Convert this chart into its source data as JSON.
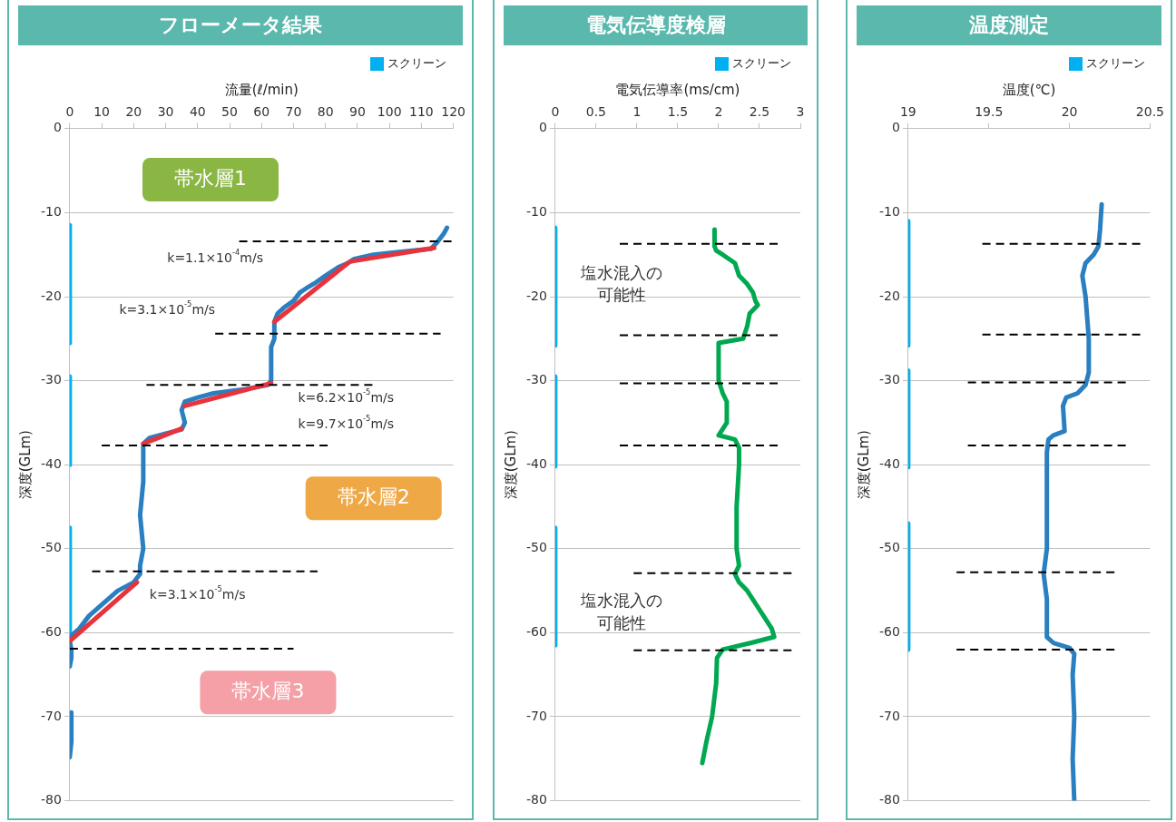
{
  "chart_data": [
    {
      "type": "line",
      "title": "フローメータ結果",
      "xlabel": "流量(ℓ/min)",
      "ylabel": "深度(GLm)",
      "xlim": [
        0,
        120
      ],
      "xticks": [
        0,
        10,
        20,
        30,
        40,
        50,
        60,
        70,
        80,
        90,
        100,
        110,
        120
      ],
      "ylim": [
        -80,
        0
      ],
      "yticks": [
        -80,
        -70,
        -60,
        -50,
        -40,
        -30,
        -20,
        -10,
        0
      ],
      "grid": "y",
      "legend": "top right",
      "marker": "none",
      "series": [
        {
          "name": "スクリーン",
          "color": "#00b0f0",
          "x": [
            0,
            0,
            null,
            0,
            0,
            null,
            0,
            0
          ],
          "values": [
            -11.5,
            -25.5,
            null,
            -29.5,
            -40,
            null,
            -47.5,
            -61.5
          ]
        },
        {
          "color": "#2a7fc0",
          "x": [
            118,
            117,
            115,
            113,
            105,
            95,
            89,
            87,
            84,
            80,
            77,
            74,
            72,
            70,
            67,
            65,
            64,
            64,
            63,
            63,
            62,
            55,
            45,
            40,
            36,
            35,
            36,
            35,
            30,
            25,
            23,
            23,
            22,
            23,
            22,
            22,
            20,
            15,
            12,
            9,
            6,
            3,
            0,
            0,
            0.5,
            0.5,
            0,
            null,
            0.5,
            0.5,
            0
          ],
          "values": [
            -11.8,
            -12.5,
            -13.5,
            -14.3,
            -14.6,
            -15,
            -15.5,
            -16,
            -16.5,
            -17.5,
            -18.3,
            -19,
            -19.5,
            -20.5,
            -21.3,
            -22,
            -23,
            -25,
            -26,
            -30,
            -30.5,
            -31,
            -31.5,
            -32,
            -32.5,
            -33.5,
            -35,
            -35.8,
            -36.3,
            -36.8,
            -37.5,
            -42,
            -46,
            -50,
            -52,
            -53,
            -54,
            -55,
            -56,
            -57,
            -58,
            -59.5,
            -60.5,
            -61,
            -62,
            -63,
            -64,
            null,
            -69.5,
            -73,
            -74.8
          ]
        },
        {
          "color": "#e8333c",
          "x": [
            114,
            88,
            null,
            87,
            64,
            null,
            63,
            36,
            null,
            35,
            23,
            null,
            21,
            0
          ],
          "values": [
            -14.2,
            -15.8,
            null,
            -16,
            -23,
            null,
            -30.3,
            -33,
            null,
            -35.7,
            -37.5,
            null,
            -54,
            -61
          ]
        },
        {
          "color": "#000000",
          "line_style": "dashed",
          "x": [
            53,
            120
          ],
          "values": [
            -13.4,
            -13.4
          ]
        },
        {
          "color": "#000000",
          "line_style": "dashed",
          "x": [
            45.5,
            116
          ],
          "values": [
            -24.4,
            -24.4
          ]
        },
        {
          "color": "#000000",
          "line_style": "dashed",
          "x": [
            24,
            95
          ],
          "values": [
            -30.5,
            -30.5
          ]
        },
        {
          "color": "#000000",
          "line_style": "dashed",
          "x": [
            10,
            81
          ],
          "values": [
            -37.7,
            -37.7
          ]
        },
        {
          "color": "#000000",
          "line_style": "dashed",
          "x": [
            7,
            77.5
          ],
          "values": [
            -52.7,
            -52.7
          ]
        },
        {
          "color": "#000000",
          "line_style": "dashed",
          "x": [
            0,
            70
          ],
          "values": [
            -61.9,
            -61.9
          ]
        }
      ],
      "annotations": [
        "k=1.1×10$^{-4}$m/s",
        "k=3.1×10$^{-5}$m/s",
        "k=6.2×10$^{-5}$m/s",
        "k=9.7×10$^{-5}$m/s",
        "k=3.1×10$^{-5}$m/s",
        "帯水層1",
        "帯水層2",
        "帯水層3"
      ]
    },
    {
      "type": "line",
      "title": "電気伝導度検層",
      "xlabel": "電気伝導率(ms/cm)",
      "ylabel": "深度(GLm)",
      "xlim": [
        0,
        3
      ],
      "xticks": [
        0,
        0.5,
        1,
        1.5,
        2,
        2.5,
        3
      ],
      "ylim": [
        -80,
        0
      ],
      "yticks": [
        -80,
        -70,
        -60,
        -50,
        -40,
        -30,
        -20,
        -10,
        0
      ],
      "grid": "y",
      "legend": "top right",
      "marker": "none",
      "series": [
        {
          "name": "スクリーン",
          "color": "#00b0f0",
          "x": [
            0,
            0,
            null,
            0,
            0,
            null,
            0,
            0
          ],
          "values": [
            -11.8,
            -25.8,
            null,
            -29.5,
            -40.2,
            null,
            -47.5,
            -61.5
          ]
        },
        {
          "color": "#00a850",
          "x": [
            1.95,
            1.95,
            1.97,
            2.05,
            2.2,
            2.25,
            2.35,
            2.42,
            2.45,
            2.48,
            2.38,
            2.35,
            2.3,
            2.0,
            2.0,
            2.05,
            2.1,
            2.1,
            2.0,
            2.2,
            2.25,
            2.25,
            2.22,
            2.22,
            2.25,
            2.2,
            2.25,
            2.35,
            2.45,
            2.55,
            2.65,
            2.68,
            2.4,
            2.05,
            1.98,
            1.97,
            1.92,
            1.85,
            1.8
          ],
          "values": [
            -12,
            -14,
            -14.5,
            -15,
            -16,
            -17.5,
            -18.5,
            -19.5,
            -20.5,
            -21,
            -22,
            -23.5,
            -25,
            -25.5,
            -30,
            -31.5,
            -32.5,
            -35,
            -36.5,
            -37,
            -38,
            -40,
            -45,
            -50,
            -52,
            -53,
            -54,
            -55,
            -56.5,
            -58,
            -59.5,
            -60.5,
            -61.2,
            -62,
            -63,
            -66,
            -70,
            -73,
            -75.5
          ]
        },
        {
          "color": "#000000",
          "line_style": "dashed",
          "x": [
            0.79,
            2.74
          ],
          "values": [
            -13.7,
            -13.7
          ]
        },
        {
          "color": "#000000",
          "line_style": "dashed",
          "x": [
            0.79,
            2.74
          ],
          "values": [
            -24.6,
            -24.6
          ]
        },
        {
          "color": "#000000",
          "line_style": "dashed",
          "x": [
            0.79,
            2.74
          ],
          "values": [
            -30.3,
            -30.3
          ]
        },
        {
          "color": "#000000",
          "line_style": "dashed",
          "x": [
            0.79,
            2.74
          ],
          "values": [
            -37.7,
            -37.7
          ]
        },
        {
          "color": "#000000",
          "line_style": "dashed",
          "x": [
            0.96,
            2.91
          ],
          "values": [
            -52.9,
            -52.9
          ]
        },
        {
          "color": "#000000",
          "line_style": "dashed",
          "x": [
            0.96,
            2.91
          ],
          "values": [
            -62.1,
            -62.1
          ]
        }
      ],
      "annotations": [
        "塩水混入の可能性",
        "塩水混入の可能性"
      ]
    },
    {
      "type": "line",
      "title": "温度測定",
      "xlabel": "温度(℃)",
      "ylabel": "深度(GLm)",
      "xlim": [
        19,
        20.5
      ],
      "xticks": [
        19,
        19.5,
        20,
        20.5
      ],
      "ylim": [
        -80,
        0
      ],
      "yticks": [
        -80,
        -70,
        -60,
        -50,
        -40,
        -30,
        -20,
        -10,
        0
      ],
      "grid": "y",
      "legend": "top right",
      "marker": "none",
      "series": [
        {
          "name": "スクリーン",
          "color": "#00b0f0",
          "x": [
            19,
            19,
            null,
            19,
            19,
            null,
            19,
            19
          ],
          "values": [
            -11,
            -25.8,
            null,
            -28.8,
            -40.3,
            null,
            -47,
            -62
          ]
        },
        {
          "color": "#2a7fc0",
          "x": [
            20.2,
            20.19,
            20.18,
            20.15,
            20.1,
            20.08,
            20.1,
            20.12,
            20.12,
            20.1,
            20.05,
            19.98,
            19.96,
            19.97,
            19.9,
            19.87,
            19.86,
            19.86,
            19.84,
            19.86,
            19.86,
            19.9,
            20.0,
            20.03,
            20.02,
            20.03,
            20.02,
            20.03
          ],
          "values": [
            -9,
            -12,
            -14,
            -15,
            -16,
            -17.5,
            -20,
            -25,
            -29,
            -30.5,
            -31.5,
            -32,
            -33,
            -36,
            -36.5,
            -37,
            -38.5,
            -50,
            -53,
            -56,
            -60.5,
            -61.2,
            -61.8,
            -62.5,
            -65,
            -70,
            -75,
            -80
          ]
        },
        {
          "color": "#000000",
          "line_style": "dashed",
          "x": [
            19.46,
            20.46
          ],
          "values": [
            -13.7,
            -13.7
          ]
        },
        {
          "color": "#000000",
          "line_style": "dashed",
          "x": [
            19.46,
            20.46
          ],
          "values": [
            -24.5,
            -24.5
          ]
        },
        {
          "color": "#000000",
          "line_style": "dashed",
          "x": [
            19.37,
            20.37
          ],
          "values": [
            -30.2,
            -30.2
          ]
        },
        {
          "color": "#000000",
          "line_style": "dashed",
          "x": [
            19.37,
            20.37
          ],
          "values": [
            -37.7,
            -37.7
          ]
        },
        {
          "color": "#000000",
          "line_style": "dashed",
          "x": [
            19.3,
            20.29
          ],
          "values": [
            -52.8,
            -52.8
          ]
        },
        {
          "color": "#000000",
          "line_style": "dashed",
          "x": [
            19.3,
            20.29
          ],
          "values": [
            -62,
            -62
          ]
        }
      ]
    }
  ]
}
